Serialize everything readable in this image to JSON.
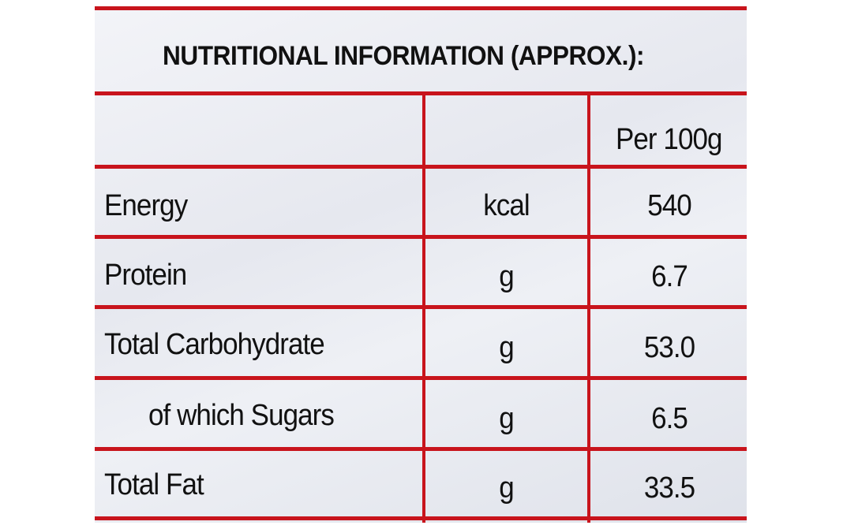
{
  "title": "NUTRITIONAL INFORMATION (APPROX.):",
  "column_header": "Per 100g",
  "rows": [
    {
      "nutrient": "Energy",
      "unit": "kcal",
      "value": "540"
    },
    {
      "nutrient": "Protein",
      "unit": "g",
      "value": "6.7"
    },
    {
      "nutrient": "Total Carbohydrate",
      "unit": "g",
      "value": "53.0"
    },
    {
      "nutrient": "of which Sugars",
      "unit": "g",
      "value": "6.5"
    },
    {
      "nutrient": "Total Fat",
      "unit": "g",
      "value": "33.5"
    }
  ],
  "colors": {
    "rule": "#c8141c",
    "text": "#111111"
  }
}
